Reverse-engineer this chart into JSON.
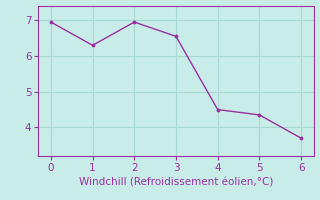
{
  "x": [
    0,
    1,
    2,
    3,
    4,
    5,
    6
  ],
  "y": [
    6.95,
    6.3,
    6.95,
    6.55,
    4.5,
    4.35,
    3.7
  ],
  "line_color": "#9b30a0",
  "marker_color": "#9b30a0",
  "bg_color": "#c8ede8",
  "grid_color": "#a8d8d3",
  "xlabel": "Windchill (Refroidissement éolien,°C)",
  "xlabel_color": "#9b30a0",
  "tick_color": "#9b30a0",
  "spine_color": "#9b30a0",
  "xlim": [
    -0.3,
    6.3
  ],
  "ylim": [
    3.2,
    7.4
  ],
  "xticks": [
    0,
    1,
    2,
    3,
    4,
    5,
    6
  ],
  "yticks": [
    4,
    5,
    6,
    7
  ],
  "font_size": 7.5
}
